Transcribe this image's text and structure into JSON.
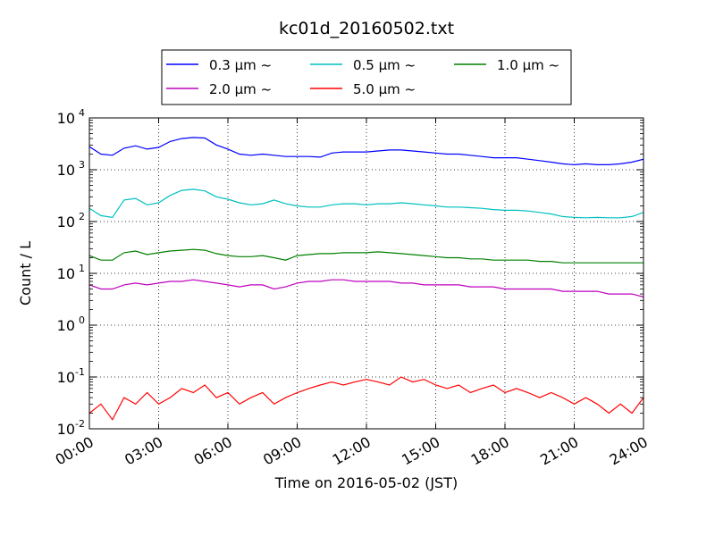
{
  "chart_data": {
    "type": "line",
    "title": "kc01d_20160502.txt",
    "xlabel": "Time on 2016-05-02 (JST)",
    "ylabel": "Count / L",
    "yscale": "log",
    "ylim": [
      0.01,
      10000
    ],
    "xlim": [
      "00:00",
      "24:00"
    ],
    "x_ticks": [
      "00:00",
      "03:00",
      "06:00",
      "09:00",
      "12:00",
      "15:00",
      "18:00",
      "21:00",
      "24:00"
    ],
    "y_ticks": [
      {
        "base": "10",
        "exp": "-2"
      },
      {
        "base": "10",
        "exp": "-1"
      },
      {
        "base": "10",
        "exp": "0"
      },
      {
        "base": "10",
        "exp": "1"
      },
      {
        "base": "10",
        "exp": "2"
      },
      {
        "base": "10",
        "exp": "3"
      },
      {
        "base": "10",
        "exp": "4"
      }
    ],
    "grid": true,
    "legend_position": "top-center",
    "series": [
      {
        "name": "0.3 μm ~",
        "color": "#0000ff",
        "x": [
          "00:00",
          "00:30",
          "01:00",
          "01:30",
          "02:00",
          "02:30",
          "03:00",
          "03:30",
          "04:00",
          "04:30",
          "05:00",
          "05:30",
          "06:00",
          "06:30",
          "07:00",
          "07:30",
          "08:00",
          "08:30",
          "09:00",
          "09:30",
          "10:00",
          "10:30",
          "11:00",
          "11:30",
          "12:00",
          "12:30",
          "13:00",
          "13:30",
          "14:00",
          "14:30",
          "15:00",
          "15:30",
          "16:00",
          "16:30",
          "17:00",
          "17:30",
          "18:00",
          "18:30",
          "19:00",
          "19:30",
          "20:00",
          "20:30",
          "21:00",
          "21:30",
          "22:00",
          "22:30",
          "23:00",
          "23:30",
          "24:00"
        ],
        "y": [
          2800,
          2000,
          1900,
          2600,
          2900,
          2500,
          2700,
          3500,
          4000,
          4200,
          4100,
          3000,
          2500,
          2000,
          1900,
          2000,
          1900,
          1800,
          1800,
          1800,
          1750,
          2100,
          2200,
          2200,
          2200,
          2300,
          2400,
          2400,
          2300,
          2200,
          2100,
          2000,
          2000,
          1900,
          1800,
          1700,
          1700,
          1700,
          1600,
          1500,
          1400,
          1300,
          1250,
          1300,
          1250,
          1250,
          1300,
          1400,
          1600
        ]
      },
      {
        "name": "0.5 μm ~",
        "color": "#00bfbf",
        "x": [
          "00:00",
          "00:30",
          "01:00",
          "01:30",
          "02:00",
          "02:30",
          "03:00",
          "03:30",
          "04:00",
          "04:30",
          "05:00",
          "05:30",
          "06:00",
          "06:30",
          "07:00",
          "07:30",
          "08:00",
          "08:30",
          "09:00",
          "09:30",
          "10:00",
          "10:30",
          "11:00",
          "11:30",
          "12:00",
          "12:30",
          "13:00",
          "13:30",
          "14:00",
          "14:30",
          "15:00",
          "15:30",
          "16:00",
          "16:30",
          "17:00",
          "17:30",
          "18:00",
          "18:30",
          "19:00",
          "19:30",
          "20:00",
          "20:30",
          "21:00",
          "21:30",
          "22:00",
          "22:30",
          "23:00",
          "23:30",
          "24:00"
        ],
        "y": [
          180,
          130,
          120,
          260,
          280,
          210,
          230,
          320,
          400,
          420,
          390,
          300,
          270,
          230,
          210,
          220,
          260,
          220,
          200,
          190,
          190,
          210,
          220,
          220,
          210,
          220,
          220,
          230,
          220,
          210,
          200,
          190,
          190,
          185,
          180,
          170,
          165,
          165,
          160,
          150,
          140,
          125,
          120,
          118,
          120,
          118,
          118,
          125,
          150
        ]
      },
      {
        "name": "1.0 μm ~",
        "color": "#008000",
        "x": [
          "00:00",
          "00:30",
          "01:00",
          "01:30",
          "02:00",
          "02:30",
          "03:00",
          "03:30",
          "04:00",
          "04:30",
          "05:00",
          "05:30",
          "06:00",
          "06:30",
          "07:00",
          "07:30",
          "08:00",
          "08:30",
          "09:00",
          "09:30",
          "10:00",
          "10:30",
          "11:00",
          "11:30",
          "12:00",
          "12:30",
          "13:00",
          "13:30",
          "14:00",
          "14:30",
          "15:00",
          "15:30",
          "16:00",
          "16:30",
          "17:00",
          "17:30",
          "18:00",
          "18:30",
          "19:00",
          "19:30",
          "20:00",
          "20:30",
          "21:00",
          "21:30",
          "22:00",
          "22:30",
          "23:00",
          "23:30",
          "24:00"
        ],
        "y": [
          22,
          18,
          18,
          25,
          27,
          23,
          25,
          27,
          28,
          29,
          28,
          24,
          22,
          21,
          21,
          22,
          20,
          18,
          22,
          23,
          24,
          24,
          25,
          25,
          25,
          26,
          25,
          24,
          23,
          22,
          21,
          20,
          20,
          19,
          19,
          18,
          18,
          18,
          18,
          17,
          17,
          16,
          16,
          16,
          16,
          16,
          16,
          16,
          16
        ]
      },
      {
        "name": "2.0 μm ~",
        "color": "#bf00bf",
        "x": [
          "00:00",
          "00:30",
          "01:00",
          "01:30",
          "02:00",
          "02:30",
          "03:00",
          "03:30",
          "04:00",
          "04:30",
          "05:00",
          "05:30",
          "06:00",
          "06:30",
          "07:00",
          "07:30",
          "08:00",
          "08:30",
          "09:00",
          "09:30",
          "10:00",
          "10:30",
          "11:00",
          "11:30",
          "12:00",
          "12:30",
          "13:00",
          "13:30",
          "14:00",
          "14:30",
          "15:00",
          "15:30",
          "16:00",
          "16:30",
          "17:00",
          "17:30",
          "18:00",
          "18:30",
          "19:00",
          "19:30",
          "20:00",
          "20:30",
          "21:00",
          "21:30",
          "22:00",
          "22:30",
          "23:00",
          "23:30",
          "24:00"
        ],
        "y": [
          6,
          5,
          5,
          6,
          6.5,
          6,
          6.5,
          7,
          7,
          7.5,
          7,
          6.5,
          6,
          5.5,
          6,
          6,
          5,
          5.5,
          6.5,
          7,
          7,
          7.5,
          7.5,
          7,
          7,
          7,
          7,
          6.5,
          6.5,
          6,
          6,
          6,
          6,
          5.5,
          5.5,
          5.5,
          5,
          5,
          5,
          5,
          5,
          4.5,
          4.5,
          4.5,
          4.5,
          4,
          4,
          4,
          3.5
        ]
      },
      {
        "name": "5.0 μm ~",
        "color": "#ff0000",
        "x": [
          "00:00",
          "00:30",
          "01:00",
          "01:30",
          "02:00",
          "02:30",
          "03:00",
          "03:30",
          "04:00",
          "04:30",
          "05:00",
          "05:30",
          "06:00",
          "06:30",
          "07:00",
          "07:30",
          "08:00",
          "08:30",
          "09:00",
          "09:30",
          "10:00",
          "10:30",
          "11:00",
          "11:30",
          "12:00",
          "12:30",
          "13:00",
          "13:30",
          "14:00",
          "14:30",
          "15:00",
          "15:30",
          "16:00",
          "16:30",
          "17:00",
          "17:30",
          "18:00",
          "18:30",
          "19:00",
          "19:30",
          "20:00",
          "20:30",
          "21:00",
          "21:30",
          "22:00",
          "22:30",
          "23:00",
          "23:30",
          "24:00"
        ],
        "y": [
          0.02,
          0.03,
          0.015,
          0.04,
          0.03,
          0.05,
          0.03,
          0.04,
          0.06,
          0.05,
          0.07,
          0.04,
          0.05,
          0.03,
          0.04,
          0.05,
          0.03,
          0.04,
          0.05,
          0.06,
          0.07,
          0.08,
          0.07,
          0.08,
          0.09,
          0.08,
          0.07,
          0.1,
          0.08,
          0.09,
          0.07,
          0.06,
          0.07,
          0.05,
          0.06,
          0.07,
          0.05,
          0.06,
          0.05,
          0.04,
          0.05,
          0.04,
          0.03,
          0.04,
          0.03,
          0.02,
          0.03,
          0.02,
          0.04
        ]
      }
    ]
  }
}
